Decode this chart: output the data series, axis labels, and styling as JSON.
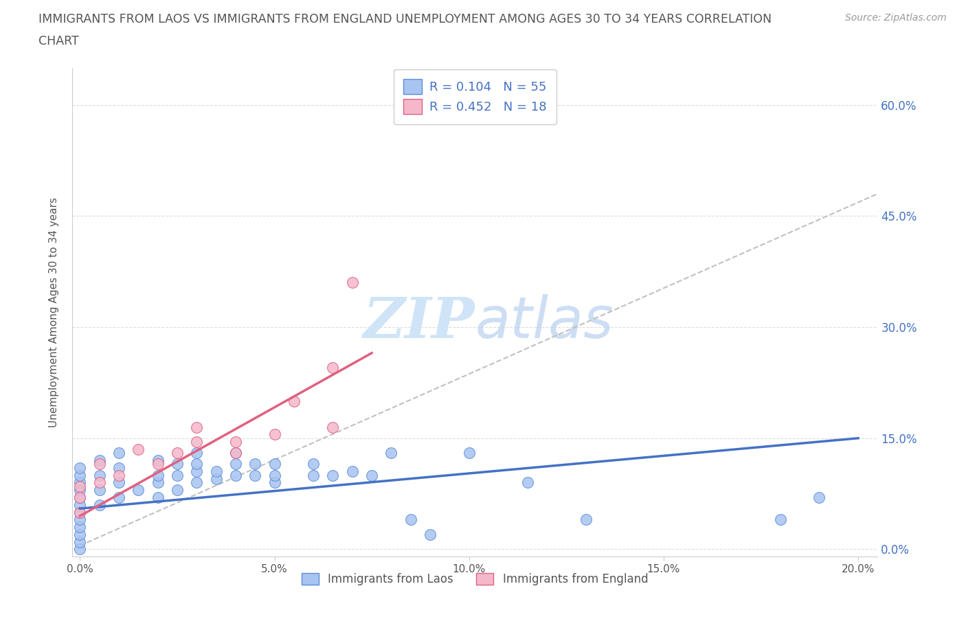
{
  "title_line1": "IMMIGRANTS FROM LAOS VS IMMIGRANTS FROM ENGLAND UNEMPLOYMENT AMONG AGES 30 TO 34 YEARS CORRELATION",
  "title_line2": "CHART",
  "source": "Source: ZipAtlas.com",
  "ylabel": "Unemployment Among Ages 30 to 34 years",
  "xlim": [
    -0.002,
    0.205
  ],
  "ylim": [
    -0.01,
    0.65
  ],
  "xticks": [
    0.0,
    0.05,
    0.1,
    0.15,
    0.2
  ],
  "xtick_labels": [
    "0.0%",
    "5.0%",
    "10.0%",
    "15.0%",
    "20.0%"
  ],
  "yticks": [
    0.0,
    0.15,
    0.3,
    0.45,
    0.6
  ],
  "ytick_labels": [
    "0.0%",
    "15.0%",
    "30.0%",
    "45.0%",
    "60.0%"
  ],
  "laos_R": 0.104,
  "laos_N": 55,
  "england_R": 0.452,
  "england_N": 18,
  "laos_color": "#a8c4f0",
  "england_color": "#f5b8cb",
  "laos_edge_color": "#5b8dd9",
  "england_edge_color": "#e06080",
  "laos_line_color": "#4472c4",
  "england_line_color": "#e06080",
  "dashed_line_color": "#c0c0c0",
  "watermark_color": "#d0e4f7",
  "laos_x": [
    0.0,
    0.0,
    0.0,
    0.0,
    0.0,
    0.0,
    0.0,
    0.0,
    0.0,
    0.0,
    0.0,
    0.0,
    0.005,
    0.005,
    0.005,
    0.005,
    0.01,
    0.01,
    0.01,
    0.01,
    0.015,
    0.02,
    0.02,
    0.02,
    0.02,
    0.025,
    0.025,
    0.025,
    0.03,
    0.03,
    0.03,
    0.03,
    0.035,
    0.035,
    0.04,
    0.04,
    0.04,
    0.045,
    0.045,
    0.05,
    0.05,
    0.05,
    0.06,
    0.06,
    0.065,
    0.07,
    0.075,
    0.08,
    0.085,
    0.09,
    0.1,
    0.115,
    0.13,
    0.18,
    0.19
  ],
  "laos_y": [
    0.0,
    0.01,
    0.02,
    0.03,
    0.04,
    0.05,
    0.06,
    0.07,
    0.08,
    0.09,
    0.1,
    0.11,
    0.06,
    0.08,
    0.1,
    0.12,
    0.07,
    0.09,
    0.11,
    0.13,
    0.08,
    0.07,
    0.09,
    0.1,
    0.12,
    0.08,
    0.1,
    0.115,
    0.09,
    0.105,
    0.115,
    0.13,
    0.095,
    0.105,
    0.1,
    0.115,
    0.13,
    0.1,
    0.115,
    0.09,
    0.1,
    0.115,
    0.1,
    0.115,
    0.1,
    0.105,
    0.1,
    0.13,
    0.04,
    0.02,
    0.13,
    0.09,
    0.04,
    0.04,
    0.07
  ],
  "england_x": [
    0.0,
    0.0,
    0.0,
    0.005,
    0.005,
    0.01,
    0.015,
    0.02,
    0.025,
    0.03,
    0.03,
    0.04,
    0.04,
    0.05,
    0.055,
    0.065,
    0.065,
    0.07
  ],
  "england_y": [
    0.05,
    0.07,
    0.085,
    0.09,
    0.115,
    0.1,
    0.135,
    0.115,
    0.13,
    0.145,
    0.165,
    0.13,
    0.145,
    0.155,
    0.2,
    0.165,
    0.245,
    0.36
  ],
  "laos_trend_x0": 0.0,
  "laos_trend_x1": 0.2,
  "laos_trend_y0": 0.055,
  "laos_trend_y1": 0.15,
  "england_trend_x0": 0.0,
  "england_trend_x1": 0.075,
  "england_trend_y0": 0.045,
  "england_trend_y1": 0.265,
  "dashed_trend_x0": 0.0,
  "dashed_trend_x1": 0.205,
  "dashed_trend_y0": 0.005,
  "dashed_trend_y1": 0.48
}
